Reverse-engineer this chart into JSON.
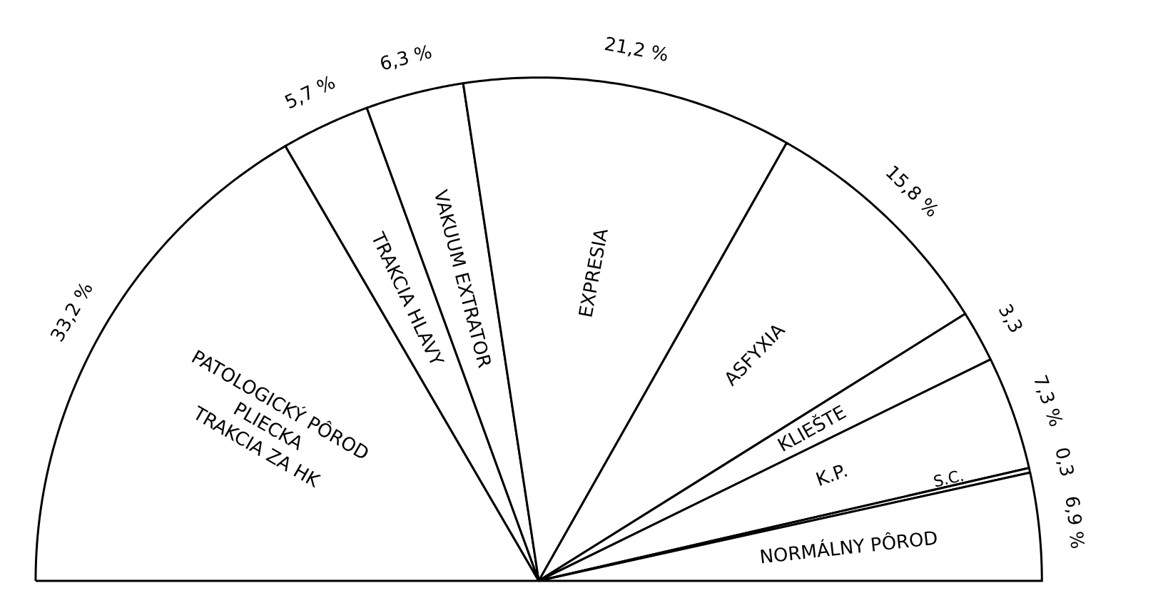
{
  "chart_data": {
    "type": "pie",
    "categories": [
      "PATOLOGICKÝ PÔROD\nPLIECKA\nTRAKCIA ZA HK",
      "TRAKCIA HLAVY",
      "VAKUUM EXTRATOR",
      "EXPRESIA",
      "ASFYXIA",
      "KLIEŠTE",
      "K.P.",
      "S.C.",
      "NORMÁLNY PÔROD"
    ],
    "values": [
      33.2,
      5.7,
      6.3,
      21.2,
      15.8,
      3.3,
      7.3,
      0.3,
      6.9
    ],
    "value_labels": [
      "33,2 %",
      "5,7 %",
      "6,3 %",
      "21,2 %",
      "15,8 %",
      "3,3",
      "7,3 %",
      "0,3",
      "6,9 %"
    ],
    "colors": [
      "#ffffff",
      "#ffffff",
      "#ffffff",
      "#ffffff",
      "#ffffff",
      "#ffffff",
      "#ffffff",
      "#ffffff",
      "#ffffff"
    ]
  }
}
